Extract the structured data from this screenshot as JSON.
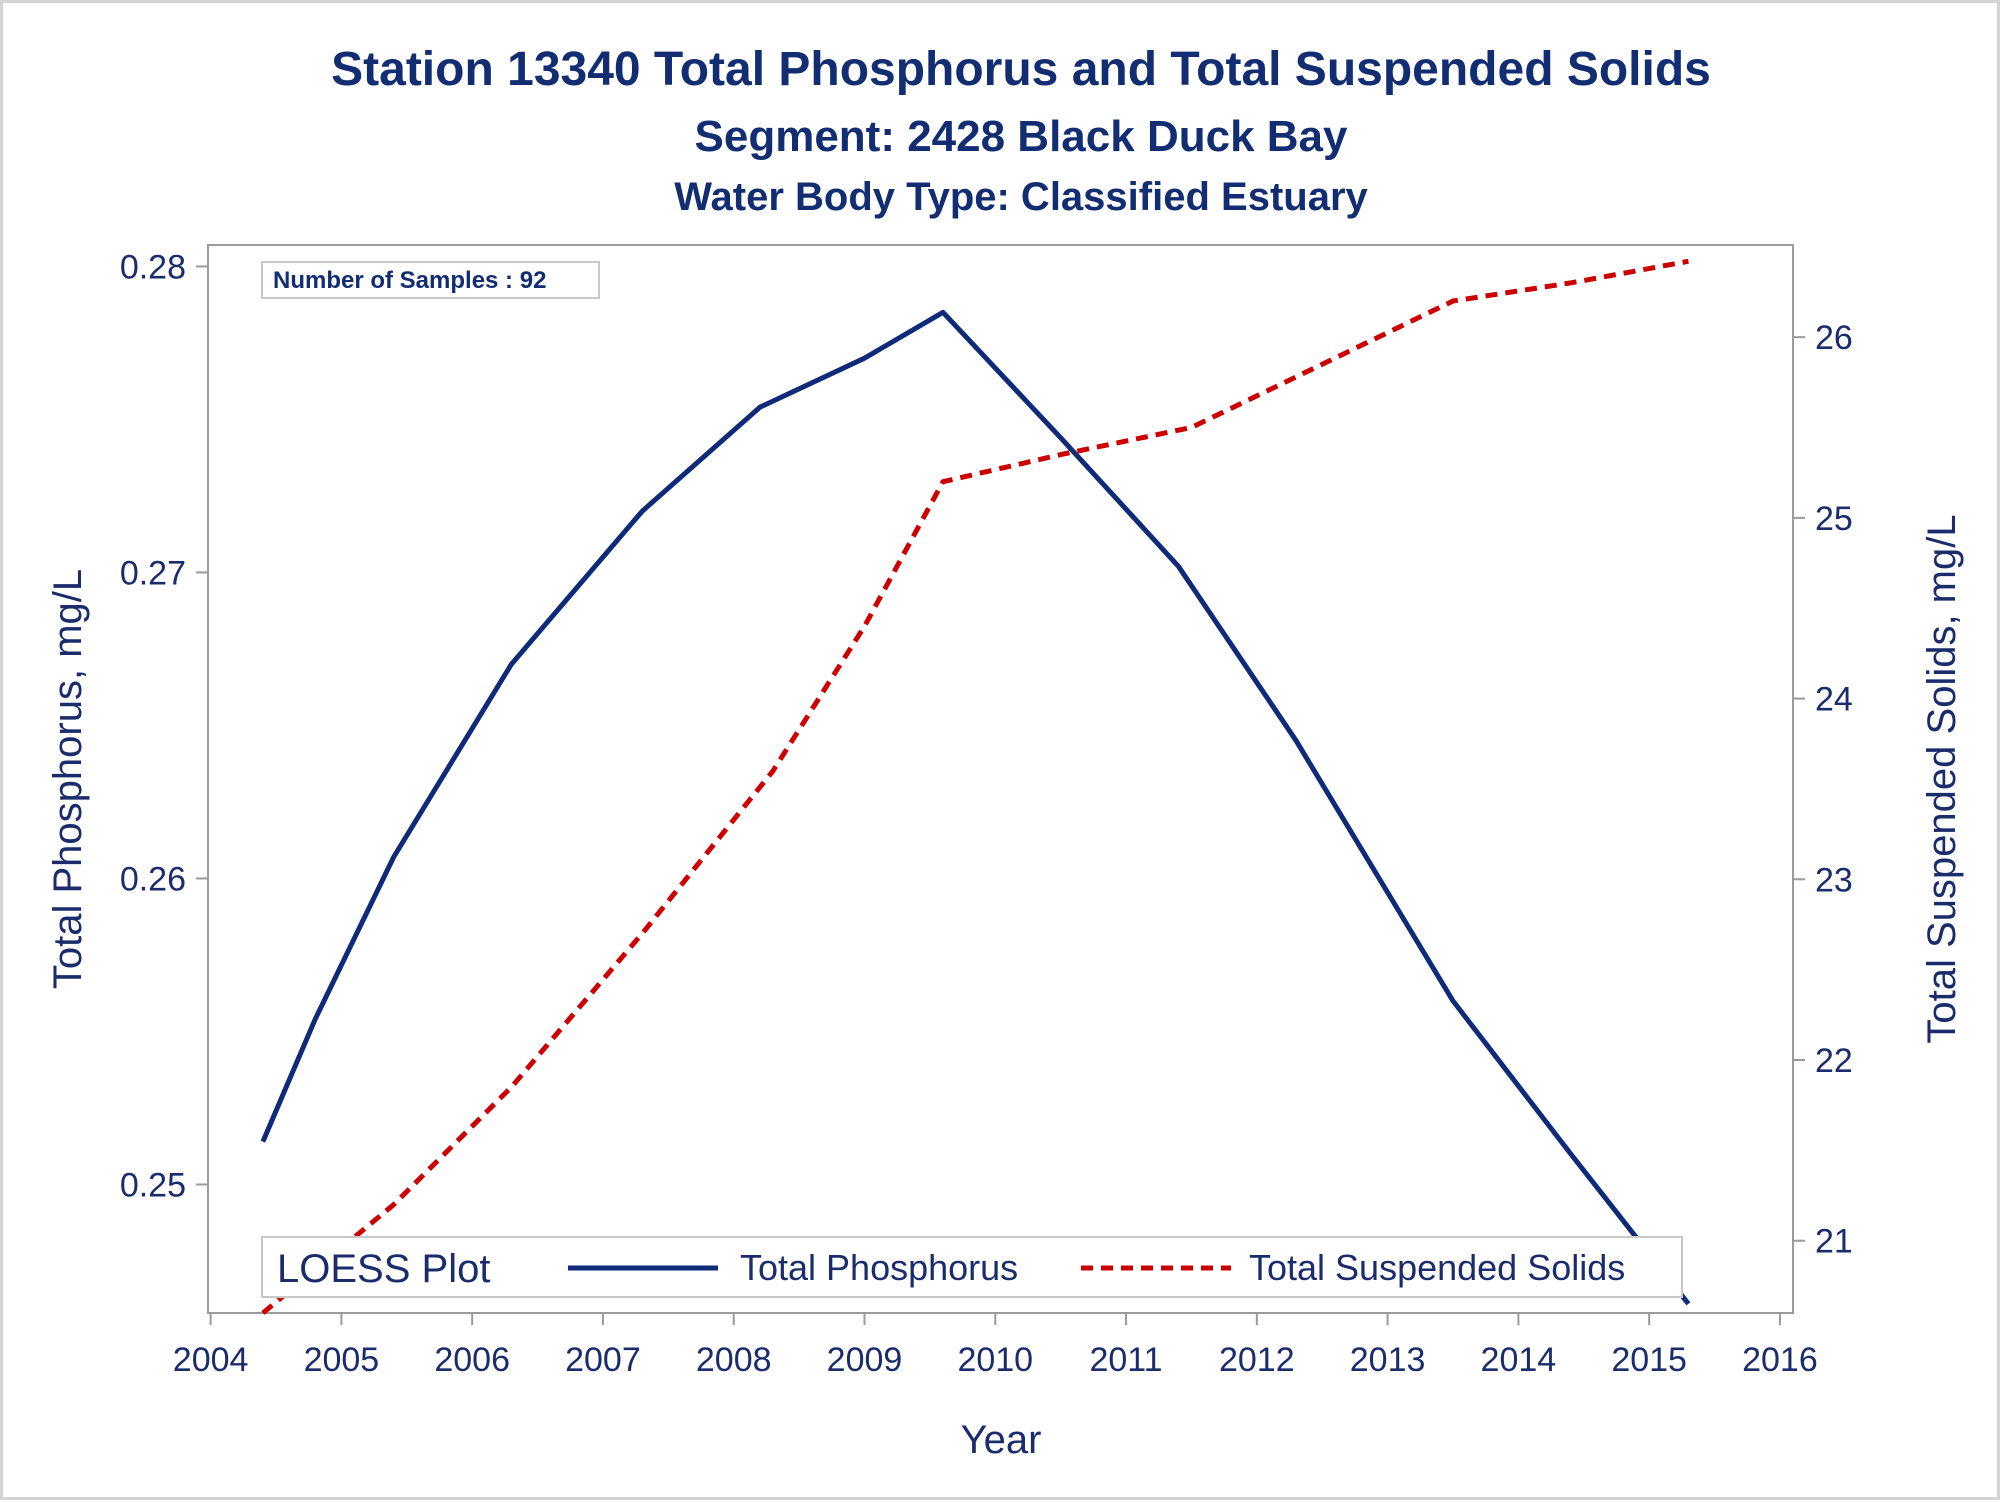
{
  "colors": {
    "title": "#122d72",
    "text": "#1a2c6b",
    "phosphorus": "#0e2a78",
    "tss": "#cc0000",
    "frame": "#9a9a9a"
  },
  "chart_data": {
    "type": "line",
    "title": "Station 13340  Total Phosphorus and Total Suspended Solids",
    "subtitle": "Segment: 2428  Black Duck Bay",
    "subtitle2": "Water Body Type: Classified Estuary",
    "xlabel": "Year",
    "ylabel": "Total Phosphorus, mg/L",
    "y2label": "Total Suspended Solids, mg/L",
    "xlim": [
      2003.98,
      2016.1
    ],
    "ylim": [
      0.2458,
      0.2807
    ],
    "y2lim": [
      20.6,
      26.51
    ],
    "x_ticks": [
      "2004",
      "2005",
      "2006",
      "2007",
      "2008",
      "2009",
      "2010",
      "2011",
      "2012",
      "2013",
      "2014",
      "2015",
      "2016"
    ],
    "y_ticks": [
      "0.25",
      "0.26",
      "0.27",
      "0.28"
    ],
    "y2_ticks": [
      "21",
      "22",
      "23",
      "24",
      "25",
      "26"
    ],
    "inset": "Number of Samples : 92",
    "legend": {
      "title": "LOESS Plot",
      "placement": "bottom-inside",
      "entries": [
        "Total Phosphorus",
        "Total Suspended Solids"
      ]
    },
    "series": [
      {
        "name": "Total Phosphorus",
        "axis": "left",
        "style": "solid",
        "x": [
          2004.4,
          2004.8,
          2005.4,
          2006.3,
          2007.3,
          2008.2,
          2009.0,
          2009.6,
          2010.5,
          2011.4,
          2012.3,
          2013.5,
          2014.4,
          2015.3
        ],
        "y": [
          0.2514,
          0.2554,
          0.2607,
          0.267,
          0.272,
          0.2754,
          0.277,
          0.2785,
          0.2744,
          0.2702,
          0.2645,
          0.256,
          0.251,
          0.2461
        ]
      },
      {
        "name": "Total Suspended Solids",
        "axis": "right",
        "style": "dashed",
        "x": [
          2004.4,
          2005.4,
          2006.3,
          2007.3,
          2008.3,
          2009.0,
          2009.6,
          2010.5,
          2011.5,
          2012.5,
          2013.5,
          2014.4,
          2015.3
        ],
        "y": [
          20.6,
          21.2,
          21.85,
          22.7,
          23.6,
          24.4,
          25.2,
          25.35,
          25.5,
          25.85,
          26.2,
          26.3,
          26.42
        ]
      }
    ]
  }
}
